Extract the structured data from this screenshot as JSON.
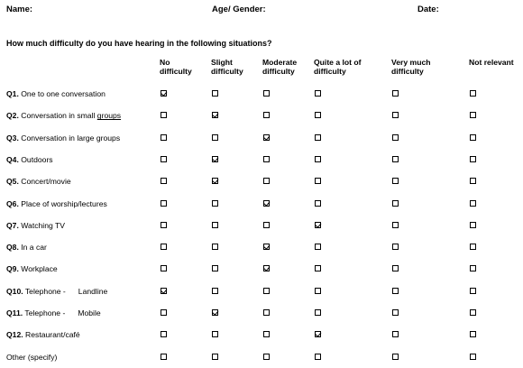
{
  "header": {
    "name_label": "Name:",
    "age_gender_label": "Age/ Gender:",
    "date_label": "Date:"
  },
  "question_title": "How much difficulty do you have hearing in the following situations?",
  "columns": [
    "No difficulty",
    "Slight difficulty",
    "Moderate difficulty",
    "Quite a lot of difficulty",
    "Very much difficulty",
    "Not relevant"
  ],
  "rows": [
    {
      "num": "Q1.",
      "label": "One to one conversation",
      "selected": 0
    },
    {
      "num": "Q2.",
      "label": "Conversation in small groups",
      "selected": 1
    },
    {
      "num": "Q3.",
      "label": "Conversation in large groups",
      "selected": 2
    },
    {
      "num": "Q4.",
      "label": "Outdoors",
      "selected": 1
    },
    {
      "num": "Q5.",
      "label": "Concert/movie",
      "selected": 1
    },
    {
      "num": "Q6.",
      "label": "Place of worship/lectures",
      "selected": 2
    },
    {
      "num": "Q7.",
      "label": "Watching TV",
      "selected": 3
    },
    {
      "num": "Q8.",
      "label": "In a car",
      "selected": 2
    },
    {
      "num": "Q9.",
      "label": "Workplace",
      "selected": 2
    },
    {
      "num": "Q10.",
      "label": "Telephone -",
      "label2": "Landline",
      "selected": 0
    },
    {
      "num": "Q11.",
      "label": "Telephone -",
      "label2": "Mobile",
      "selected": 1
    },
    {
      "num": "Q12.",
      "label": "Restaurant/café",
      "selected": 3
    },
    {
      "num": "",
      "label": "Other (specify)",
      "selected": -1
    }
  ]
}
